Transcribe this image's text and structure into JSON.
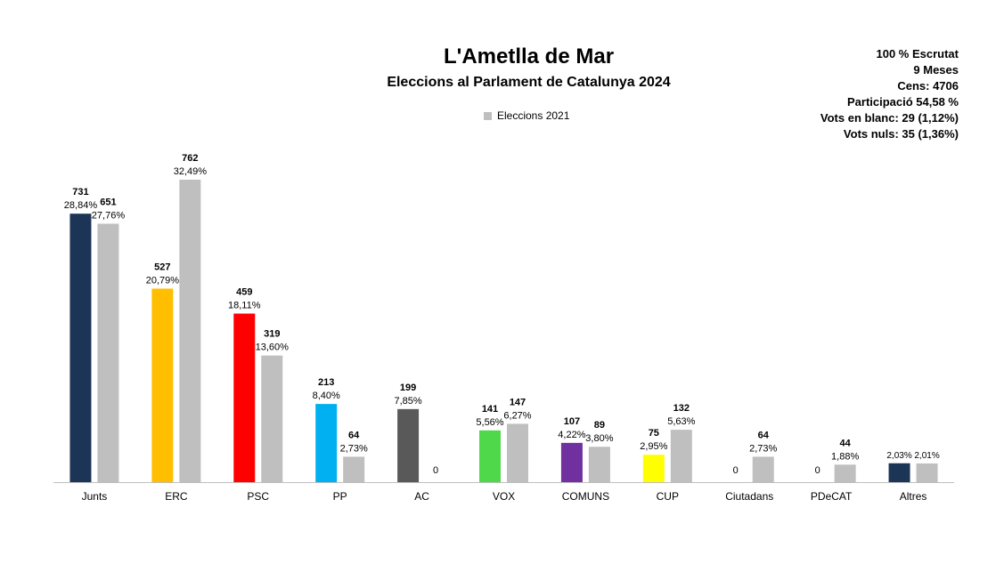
{
  "header": {
    "title": "L'Ametlla de Mar",
    "subtitle": "Eleccions al Parlament de Catalunya 2024"
  },
  "legend": {
    "label": "Eleccions 2021",
    "color": "#bfbfbf"
  },
  "info": {
    "scrutat": "100 % Escrutat",
    "meses": "9 Meses",
    "cens": "Cens: 4706",
    "participacio": "Participació  54,58 %",
    "vots_blanc": "Vots en blanc: 29 (1,12%)",
    "vots_nuls": "Vots nuls: 35 (1,36%)"
  },
  "chart_data": {
    "type": "bar",
    "title": "L'Ametlla de Mar",
    "subtitle": "Eleccions al Parlament de Catalunya 2024",
    "xlabel": "",
    "ylabel": "",
    "ylim": [
      0,
      35
    ],
    "grid": false,
    "legend_position": "top-center",
    "categories": [
      "Junts",
      "ERC",
      "PSC",
      "PP",
      "AC",
      "VOX",
      "COMUNS",
      "CUP",
      "Ciutadans",
      "PDeCAT",
      "Altres"
    ],
    "colors_2024": [
      "#1c3557",
      "#ffbf00",
      "#ff0000",
      "#00b0f0",
      "#595959",
      "#4fd84a",
      "#7030a0",
      "#ffff00",
      "#bfbfbf",
      "#bfbfbf",
      "#1c3557"
    ],
    "series": [
      {
        "year": "2024",
        "votes": [
          731,
          527,
          459,
          213,
          199,
          141,
          107,
          75,
          0,
          0,
          null
        ],
        "percent": [
          28.84,
          20.79,
          18.11,
          8.4,
          7.85,
          5.56,
          4.22,
          2.95,
          0,
          0,
          2.03
        ],
        "vote_labels": [
          "731",
          "527",
          "459",
          "213",
          "199",
          "141",
          "107",
          "75",
          "0",
          "0",
          ""
        ],
        "percent_labels": [
          "28,84%",
          "20,79%",
          "18,11%",
          "8,40%",
          "7,85%",
          "5,56%",
          "4,22%",
          "2,95%",
          "",
          "",
          "2,03%"
        ]
      },
      {
        "name": "Eleccions 2021",
        "year": "2021",
        "votes": [
          651,
          762,
          319,
          64,
          0,
          147,
          89,
          132,
          64,
          44,
          null
        ],
        "percent": [
          27.76,
          32.49,
          13.6,
          2.73,
          0,
          6.27,
          3.8,
          5.63,
          2.73,
          1.88,
          2.01
        ],
        "vote_labels": [
          "651",
          "762",
          "319",
          "64",
          "0",
          "147",
          "89",
          "132",
          "64",
          "44",
          ""
        ],
        "percent_labels": [
          "27,76%",
          "32,49%",
          "13,60%",
          "2,73%",
          "",
          "6,27%",
          "3,80%",
          "5,63%",
          "2,73%",
          "1,88%",
          "2,01%"
        ]
      }
    ]
  }
}
